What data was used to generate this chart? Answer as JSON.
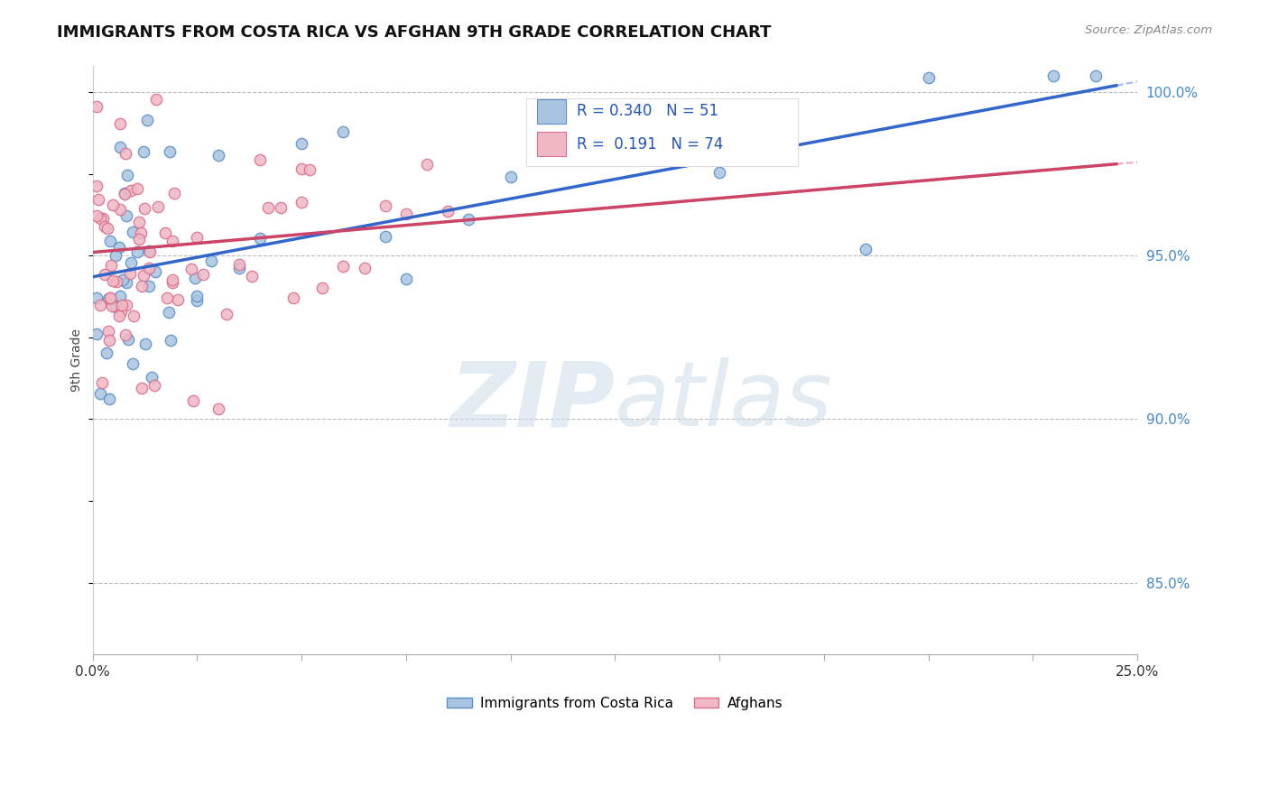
{
  "title": "IMMIGRANTS FROM COSTA RICA VS AFGHAN 9TH GRADE CORRELATION CHART",
  "source_text": "Source: ZipAtlas.com",
  "ylabel": "9th Grade",
  "watermark_zip": "ZIP",
  "watermark_atlas": "atlas",
  "xlim": [
    0.0,
    0.25
  ],
  "ylim": [
    0.828,
    1.008
  ],
  "xtick_positions": [
    0.0,
    0.025,
    0.05,
    0.075,
    0.1,
    0.125,
    0.15,
    0.175,
    0.2,
    0.225,
    0.25
  ],
  "ytick_values": [
    0.85,
    0.9,
    0.95,
    1.0
  ],
  "blue_R": 0.34,
  "blue_N": 51,
  "pink_R": 0.191,
  "pink_N": 74,
  "blue_color": "#a8c4e0",
  "blue_edge_color": "#5b8fc9",
  "pink_color": "#f0b8c4",
  "pink_edge_color": "#d97090",
  "blue_line_color": "#3366cc",
  "pink_line_color": "#cc4466",
  "legend_blue_label": "Immigrants from Costa Rica",
  "legend_pink_label": "Afghans",
  "blue_line_x0": 0.0,
  "blue_line_y0": 0.9435,
  "blue_line_x1": 0.245,
  "blue_line_y1": 1.002,
  "pink_line_x0": 0.0,
  "pink_line_y0": 0.951,
  "pink_line_x1": 0.245,
  "pink_line_y1": 0.978
}
